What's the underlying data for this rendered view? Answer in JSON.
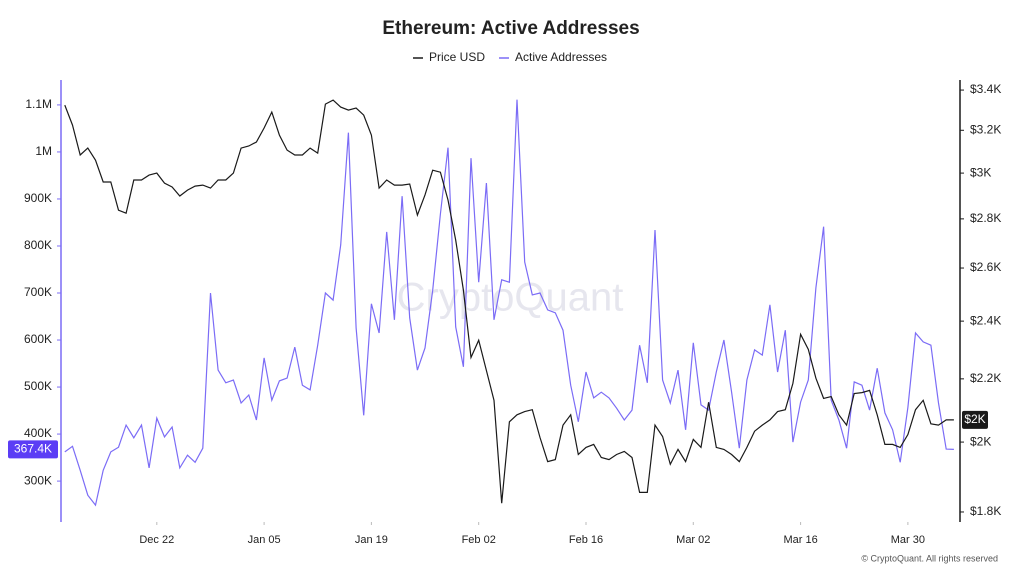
{
  "chart_data": {
    "type": "line",
    "title": "Ethereum: Active Addresses",
    "watermark": "CryptoQuant",
    "footer": "© CryptoQuant. All rights reserved",
    "x": [
      0,
      1,
      2,
      3,
      4,
      5,
      6,
      7,
      8,
      9,
      10,
      11,
      12,
      13,
      14,
      15,
      16,
      17,
      18,
      19,
      20,
      21,
      22,
      23,
      24,
      25,
      26,
      27,
      28,
      29,
      30,
      31,
      32,
      33,
      34,
      35,
      36,
      37,
      38,
      39,
      40,
      41,
      42,
      43,
      44,
      45,
      46,
      47,
      48,
      49,
      50,
      51,
      52,
      53,
      54,
      55,
      56,
      57,
      58,
      59,
      60,
      61,
      62,
      63,
      64,
      65,
      66,
      67,
      68,
      69,
      70,
      71,
      72,
      73,
      74,
      75,
      76,
      77,
      78,
      79,
      80,
      81,
      82,
      83,
      84,
      85,
      86,
      87,
      88,
      89,
      90,
      91,
      92,
      93,
      94,
      95,
      96,
      97,
      98,
      99,
      100,
      101,
      102,
      103,
      104,
      105,
      106,
      107,
      108,
      109,
      110,
      111,
      112,
      113,
      114,
      115,
      116
    ],
    "xlim": [
      -0.5,
      116.8
    ],
    "xticks": [
      {
        "value": 12,
        "label": "Dec 22"
      },
      {
        "value": 26,
        "label": "Jan 05"
      },
      {
        "value": 40,
        "label": "Jan 19"
      },
      {
        "value": 54,
        "label": "Feb 02"
      },
      {
        "value": 68,
        "label": "Feb 16"
      },
      {
        "value": 82,
        "label": "Mar 02"
      },
      {
        "value": 96,
        "label": "Mar 16"
      },
      {
        "value": 110,
        "label": "Mar 30"
      }
    ],
    "ylim": [
      213000,
      1153000
    ],
    "yticks": [
      {
        "value": 300000,
        "label": "300K"
      },
      {
        "value": 400000,
        "label": "400K"
      },
      {
        "value": 500000,
        "label": "500K"
      },
      {
        "value": 600000,
        "label": "600K"
      },
      {
        "value": 700000,
        "label": "700K"
      },
      {
        "value": 800000,
        "label": "800K"
      },
      {
        "value": 900000,
        "label": "900K"
      },
      {
        "value": 1000000,
        "label": "1M"
      },
      {
        "value": 1100000,
        "label": "1.1M"
      }
    ],
    "y2lim": [
      1773,
      3452
    ],
    "y2log": true,
    "y2ticks": [
      {
        "value": 1800,
        "label": "$1.8K"
      },
      {
        "value": 2000,
        "label": "$2K"
      },
      {
        "value": 2200,
        "label": "$2.2K"
      },
      {
        "value": 2400,
        "label": "$2.4K"
      },
      {
        "value": 2600,
        "label": "$2.6K"
      },
      {
        "value": 2800,
        "label": "$2.8K"
      },
      {
        "value": 3000,
        "label": "$3K"
      },
      {
        "value": 3200,
        "label": "$3.2K"
      },
      {
        "value": 3400,
        "label": "$3.4K"
      }
    ],
    "series": [
      {
        "name": "Price USD",
        "color": "#1a1a1a",
        "axis": "y2",
        "badge_label": "$2K",
        "values": [
          3324,
          3225,
          3083,
          3115,
          3059,
          2960,
          2960,
          2837,
          2824,
          2969,
          2969,
          2991,
          3000,
          2955,
          2938,
          2898,
          2924,
          2942,
          2946,
          2933,
          2969,
          2969,
          3000,
          3115,
          3125,
          3144,
          3211,
          3289,
          3177,
          3106,
          3083,
          3083,
          3115,
          3092,
          3329,
          3349,
          3314,
          3299,
          3309,
          3274,
          3177,
          2933,
          2969,
          2946,
          2946,
          2951,
          2816,
          2903,
          3013,
          3004,
          2881,
          2712,
          2515,
          2272,
          2332,
          2228,
          2130,
          1824,
          2062,
          2084,
          2094,
          2100,
          2014,
          1942,
          1948,
          2052,
          2084,
          1963,
          1984,
          1993,
          1954,
          1948,
          1963,
          1972,
          1954,
          1854,
          1854,
          2052,
          2017,
          1934,
          1978,
          1942,
          2008,
          1984,
          2124,
          1984,
          1978,
          1963,
          1942,
          1984,
          2033,
          2052,
          2068,
          2094,
          2100,
          2185,
          2353,
          2300,
          2202,
          2136,
          2142,
          2084,
          2052,
          2152,
          2155,
          2162,
          2084,
          1993,
          1993,
          1984,
          2023,
          2100,
          2130,
          2056,
          2052,
          2068,
          2068
        ]
      },
      {
        "name": "Active Addresses",
        "color": "#7b6cf6",
        "axis": "y",
        "badge_label": "367.4K",
        "values": [
          362000,
          374000,
          323000,
          270000,
          249000,
          323000,
          362000,
          372000,
          419000,
          392000,
          419000,
          328000,
          434000,
          394000,
          415000,
          328000,
          355000,
          340000,
          370000,
          700000,
          536000,
          509000,
          515000,
          466000,
          483000,
          430000,
          562000,
          472000,
          513000,
          519000,
          585000,
          504000,
          494000,
          589000,
          700000,
          685000,
          802000,
          1041000,
          626000,
          440000,
          677000,
          615000,
          830000,
          643000,
          906000,
          647000,
          536000,
          583000,
          706000,
          868000,
          1009000,
          628000,
          543000,
          987000,
          723000,
          934000,
          643000,
          728000,
          723000,
          1111000,
          766000,
          696000,
          700000,
          664000,
          658000,
          621000,
          504000,
          426000,
          532000,
          477000,
          489000,
          477000,
          455000,
          430000,
          451000,
          589000,
          509000,
          834000,
          515000,
          466000,
          536000,
          409000,
          594000,
          462000,
          451000,
          532000,
          600000,
          489000,
          370000,
          515000,
          579000,
          568000,
          675000,
          532000,
          621000,
          383000,
          468000,
          515000,
          711000,
          841000,
          472000,
          430000,
          370000,
          511000,
          504000,
          451000,
          540000,
          445000,
          409000,
          340000,
          457000,
          615000,
          596000,
          589000,
          466000,
          368000,
          367400
        ]
      }
    ]
  }
}
